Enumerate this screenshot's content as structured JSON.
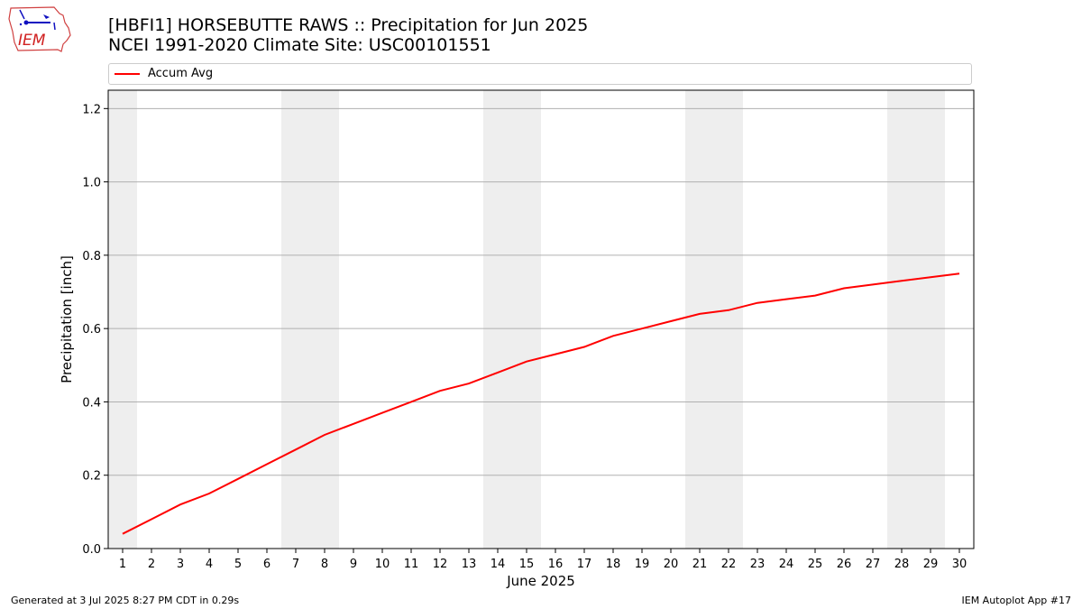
{
  "logo": {
    "text": "IEM"
  },
  "header": {
    "title_line1": "[HBFI1] HORSEBUTTE RAWS :: Precipitation for Jun 2025",
    "title_line2": "NCEI 1991-2020 Climate Site: USC00101551"
  },
  "footer": {
    "generated": "Generated at 3 Jul 2025 8:27 PM CDT in 0.29s",
    "app": "IEM Autoplot App #17"
  },
  "chart_data": {
    "type": "line",
    "xlabel": "June 2025",
    "ylabel": "Precipitation [inch]",
    "xlim": [
      0.5,
      30.5
    ],
    "ylim": [
      0,
      1.25
    ],
    "y_ticks": [
      0.0,
      0.2,
      0.4,
      0.6,
      0.8,
      1.0,
      1.2
    ],
    "y_tick_labels": [
      "0.0",
      "0.2",
      "0.4",
      "0.6",
      "0.8",
      "1.0",
      "1.2"
    ],
    "x_ticks": [
      1,
      2,
      3,
      4,
      5,
      6,
      7,
      8,
      9,
      10,
      11,
      12,
      13,
      14,
      15,
      16,
      17,
      18,
      19,
      20,
      21,
      22,
      23,
      24,
      25,
      26,
      27,
      28,
      29,
      30
    ],
    "x_tick_labels": [
      "1",
      "2",
      "3",
      "4",
      "5",
      "6",
      "7",
      "8",
      "9",
      "10",
      "11",
      "12",
      "13",
      "14",
      "15",
      "16",
      "17",
      "18",
      "19",
      "20",
      "21",
      "22",
      "23",
      "24",
      "25",
      "26",
      "27",
      "28",
      "29",
      "30"
    ],
    "grid": "horizontal",
    "legend_position": "top",
    "weekend_shading": [
      [
        0.5,
        1.5
      ],
      [
        6.5,
        8.5
      ],
      [
        13.5,
        15.5
      ],
      [
        20.5,
        22.5
      ],
      [
        27.5,
        29.5
      ]
    ],
    "colors": {
      "line": "#ff0000",
      "shade": "#eeeeee",
      "grid": "#b0b0b0"
    },
    "series": [
      {
        "name": "Accum Avg",
        "x": [
          1,
          2,
          3,
          4,
          5,
          6,
          7,
          8,
          9,
          10,
          11,
          12,
          13,
          14,
          15,
          16,
          17,
          18,
          19,
          20,
          21,
          22,
          23,
          24,
          25,
          26,
          27,
          28,
          29,
          30
        ],
        "values": [
          0.04,
          0.08,
          0.12,
          0.15,
          0.19,
          0.23,
          0.27,
          0.31,
          0.34,
          0.37,
          0.4,
          0.43,
          0.45,
          0.48,
          0.51,
          0.53,
          0.55,
          0.58,
          0.6,
          0.62,
          0.64,
          0.65,
          0.67,
          0.68,
          0.69,
          0.71,
          0.72,
          0.73,
          0.74,
          0.75
        ]
      }
    ]
  }
}
